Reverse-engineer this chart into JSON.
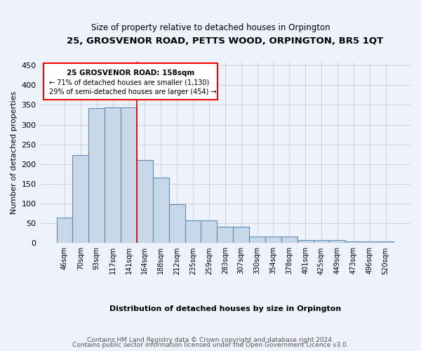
{
  "title": "25, GROSVENOR ROAD, PETTS WOOD, ORPINGTON, BR5 1QT",
  "subtitle": "Size of property relative to detached houses in Orpington",
  "xlabel": "Distribution of detached houses by size in Orpington",
  "ylabel": "Number of detached properties",
  "bar_color": "#c8d8e8",
  "bar_edge_color": "#5b8db8",
  "categories": [
    "46sqm",
    "70sqm",
    "93sqm",
    "117sqm",
    "141sqm",
    "164sqm",
    "188sqm",
    "212sqm",
    "235sqm",
    "259sqm",
    "283sqm",
    "307sqm",
    "330sqm",
    "354sqm",
    "378sqm",
    "401sqm",
    "425sqm",
    "449sqm",
    "473sqm",
    "496sqm",
    "520sqm"
  ],
  "values": [
    65,
    222,
    341,
    344,
    344,
    210,
    165,
    99,
    57,
    57,
    42,
    42,
    17,
    17,
    17,
    8,
    8,
    8,
    5,
    5,
    5
  ],
  "property_line_x": 4.5,
  "annotation_title": "25 GROSVENOR ROAD: 158sqm",
  "annotation_line1": "← 71% of detached houses are smaller (1,130)",
  "annotation_line2": "29% of semi-detached houses are larger (454) →",
  "footer1": "Contains HM Land Registry data © Crown copyright and database right 2024.",
  "footer2": "Contains public sector information licensed under the Open Government Licence v3.0.",
  "ylim": [
    0,
    460
  ],
  "background_color": "#eef2fa"
}
